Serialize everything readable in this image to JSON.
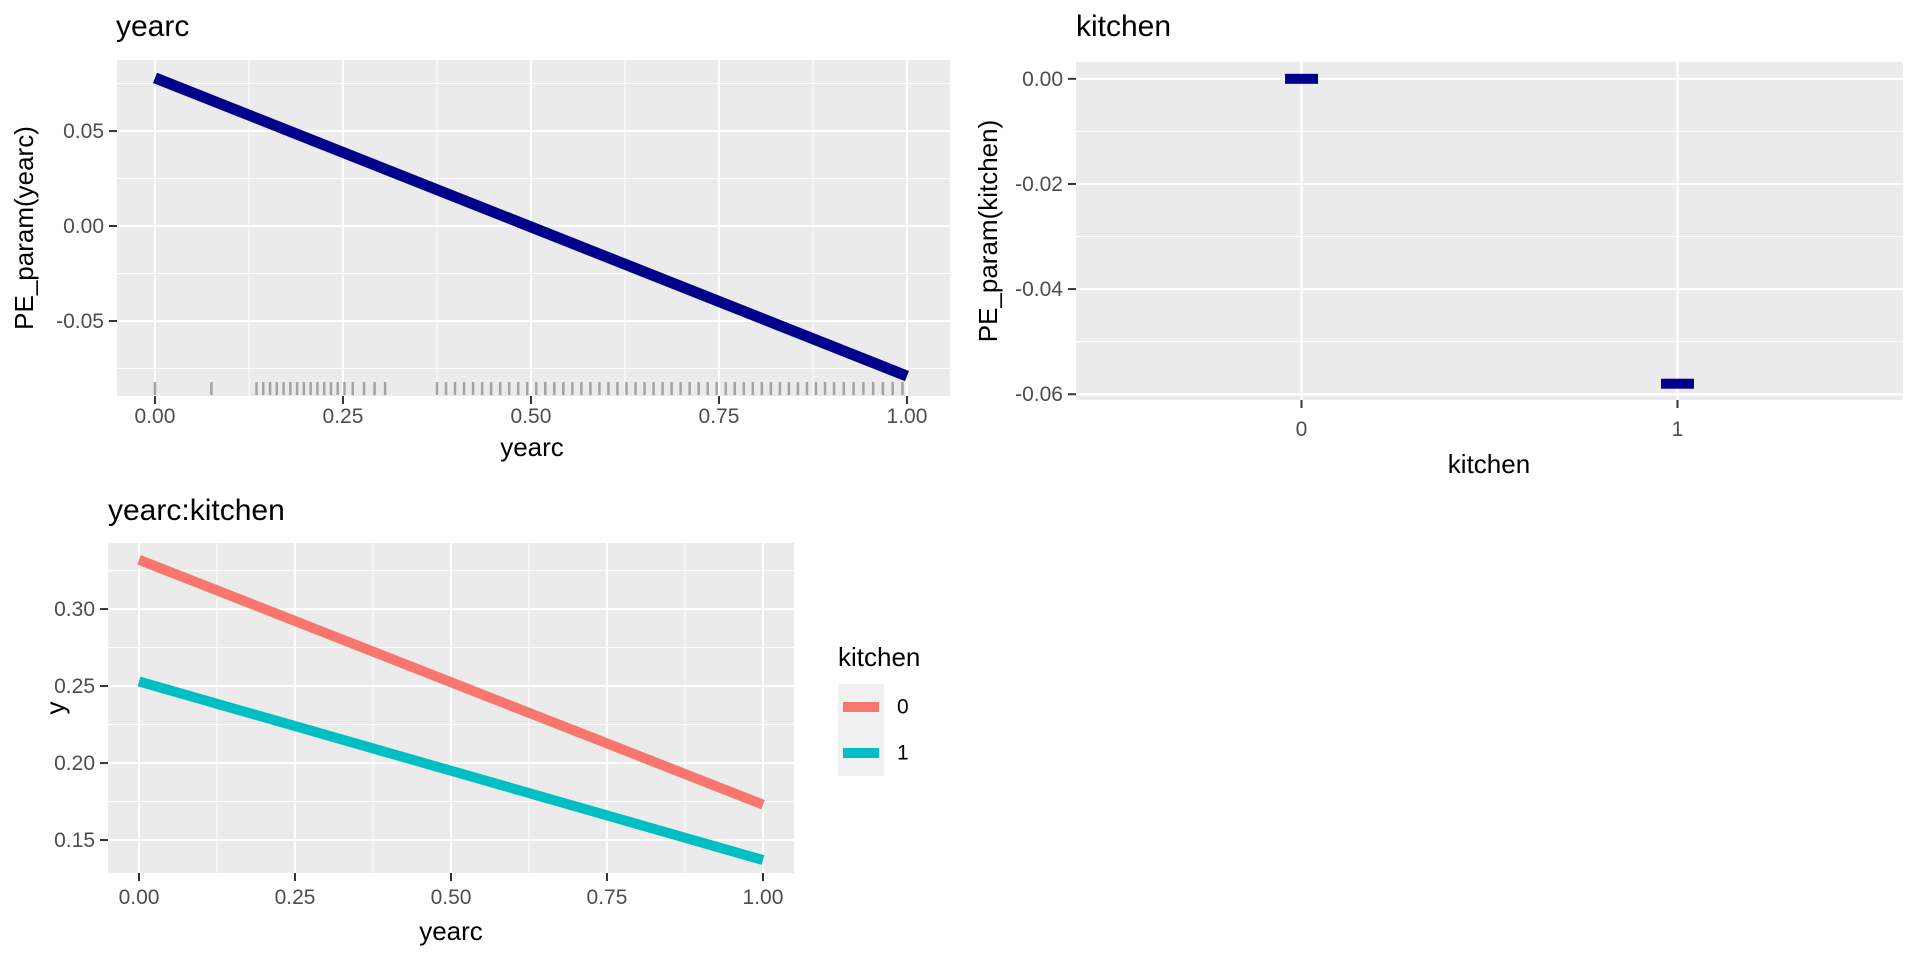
{
  "figure": {
    "background": "#FFFFFF",
    "panel_background": "#EBEBEB",
    "grid_color": "#FFFFFF",
    "axis_tick_color": "#333333",
    "tick_label_color": "#4D4D4D",
    "title_color": "#000000",
    "legend_key_background": "#F0F0F0"
  },
  "chart_data": [
    {
      "id": "yearc",
      "type": "line",
      "title": "yearc",
      "xlabel": "yearc",
      "ylabel": "PE_param(yearc)",
      "grid": true,
      "legend_position": "none",
      "xlim": [
        -0.0505,
        1.0572
      ],
      "ylim": [
        -0.0895,
        0.0874
      ],
      "x_ticks": [
        0.0,
        0.25,
        0.5,
        0.75,
        1.0
      ],
      "x_tick_labels": [
        "0.00",
        "0.25",
        "0.50",
        "0.75",
        "1.00"
      ],
      "y_ticks": [
        0.05,
        0.0,
        -0.05
      ],
      "y_tick_labels": [
        "0.05",
        "0.00",
        "-0.05"
      ],
      "x_minor": [
        0.125,
        0.375,
        0.625,
        0.875
      ],
      "y_minor": [
        0.075,
        0.025,
        -0.025,
        -0.075
      ],
      "series": [
        {
          "name": "PE_param(yearc)",
          "color": "#00008B",
          "x": [
            0.0,
            1.0
          ],
          "y": [
            0.078,
            -0.079
          ]
        }
      ],
      "rug": {
        "color": "#A3A3A3",
        "values": [
          0.0,
          0.075,
          0.135,
          0.144,
          0.153,
          0.162,
          0.171,
          0.18,
          0.189,
          0.198,
          0.207,
          0.216,
          0.225,
          0.234,
          0.243,
          0.252,
          0.263,
          0.278,
          0.292,
          0.306,
          0.375,
          0.387,
          0.399,
          0.411,
          0.423,
          0.435,
          0.447,
          0.459,
          0.471,
          0.483,
          0.495,
          0.507,
          0.519,
          0.531,
          0.543,
          0.555,
          0.567,
          0.579,
          0.591,
          0.603,
          0.615,
          0.627,
          0.639,
          0.651,
          0.663,
          0.675,
          0.687,
          0.699,
          0.711,
          0.723,
          0.735,
          0.747,
          0.759,
          0.771,
          0.783,
          0.795,
          0.807,
          0.819,
          0.831,
          0.843,
          0.855,
          0.867,
          0.879,
          0.891,
          0.903,
          0.916,
          0.929,
          0.942,
          0.955,
          0.968,
          0.981,
          0.994
        ]
      }
    },
    {
      "id": "kitchen",
      "type": "crossbar",
      "title": "kitchen",
      "xlabel": "kitchen",
      "ylabel": "PE_param(kitchen)",
      "grid": true,
      "legend_position": "none",
      "categories": [
        "0",
        "1"
      ],
      "values": [
        0.0,
        -0.058
      ],
      "color": "#00008B",
      "ylim": [
        -0.0611,
        0.0032
      ],
      "y_ticks": [
        0.0,
        -0.02,
        -0.04,
        -0.06
      ],
      "y_tick_labels": [
        "0.00",
        "-0.02",
        "-0.04",
        "-0.06"
      ],
      "y_minor": [
        -0.01,
        -0.03,
        -0.05
      ]
    },
    {
      "id": "yearc-kitchen",
      "type": "line",
      "title": "yearc:kitchen",
      "xlabel": "yearc",
      "ylabel": "y",
      "grid": true,
      "legend_position": "right",
      "xlim": [
        -0.0497,
        1.0497
      ],
      "ylim": [
        0.1286,
        0.3429
      ],
      "x_ticks": [
        0.0,
        0.25,
        0.5,
        0.75,
        1.0
      ],
      "x_tick_labels": [
        "0.00",
        "0.25",
        "0.50",
        "0.75",
        "1.00"
      ],
      "y_ticks": [
        0.3,
        0.25,
        0.2,
        0.15
      ],
      "y_tick_labels": [
        "0.30",
        "0.25",
        "0.20",
        "0.15"
      ],
      "x_minor": [
        0.125,
        0.375,
        0.625,
        0.875
      ],
      "y_minor": [
        0.325,
        0.275,
        0.225,
        0.175
      ],
      "series": [
        {
          "name": "0",
          "color": "#F8766D",
          "x": [
            0.0,
            1.0
          ],
          "y": [
            0.332,
            0.173
          ]
        },
        {
          "name": "1",
          "color": "#00BFC4",
          "x": [
            0.0,
            1.0
          ],
          "y": [
            0.253,
            0.137
          ]
        }
      ],
      "legend": {
        "title": "kitchen",
        "entries": [
          {
            "label": "0",
            "color": "#F8766D"
          },
          {
            "label": "1",
            "color": "#00BFC4"
          }
        ]
      }
    }
  ]
}
